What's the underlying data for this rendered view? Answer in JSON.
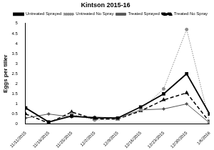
{
  "chart_data": {
    "type": "line",
    "title": "Kintson 2015-16",
    "y_label": "Eggs per tiller",
    "categories": [
      "11/11/2015",
      "11/18/2015",
      "11/25/2015",
      "12/2/2015",
      "12/9/2015",
      "12/16/2015",
      "12/23/2015",
      "12/30/2015",
      "1/6/2016"
    ],
    "series": [
      {
        "name": "Untreated Sprayed",
        "color": "#000000",
        "marker": "square",
        "line_style": "solid",
        "values": [
          0.8,
          0.1,
          0.4,
          0.3,
          0.3,
          0.85,
          1.5,
          2.5,
          0.5
        ]
      },
      {
        "name": "Untreated No Spray",
        "color": "#8c8c8c",
        "marker": "circle",
        "line_style": "dotted",
        "values": [
          0.8,
          0.1,
          0.5,
          0.2,
          0.25,
          0.7,
          1.75,
          4.7,
          0.1
        ]
      },
      {
        "name": "Treated Sprayed",
        "color": "#555555",
        "marker": "diamond",
        "line_style": "solid",
        "values": [
          0.3,
          0.5,
          0.35,
          0.35,
          0.3,
          0.7,
          0.75,
          1.0,
          0.05
        ]
      },
      {
        "name": "Treated No Spray",
        "color": "#000000",
        "marker": "triangle",
        "line_style": "dashed",
        "values": [
          0.5,
          0.05,
          0.6,
          0.25,
          0.25,
          0.65,
          1.2,
          1.55,
          0.1
        ]
      }
    ],
    "ylim": [
      0,
      5
    ],
    "yticks": [
      0,
      0.5,
      1,
      1.5,
      2,
      2.5,
      3,
      3.5,
      4,
      4.5,
      5
    ],
    "grid": false,
    "legend": "upper right"
  }
}
